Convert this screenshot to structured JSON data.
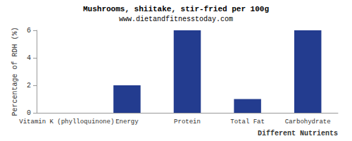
{
  "chart_data": {
    "type": "bar",
    "title": "Mushrooms, shiitake, stir-fried per 100g",
    "subtitle": "www.dietandfitnesstoday.com",
    "x_label": "Different Nutrients",
    "y_label": "Percentage of RDH (%)",
    "categories": [
      "Vitamin K (phylloquinone)",
      "Energy",
      "Protein",
      "Total Fat",
      "Carbohydrate"
    ],
    "values": [
      0,
      2,
      6,
      1,
      6
    ],
    "color": "#233c8f",
    "ylim": [
      0,
      6
    ],
    "yticks": [
      0,
      2,
      4,
      6
    ],
    "grid": false
  }
}
